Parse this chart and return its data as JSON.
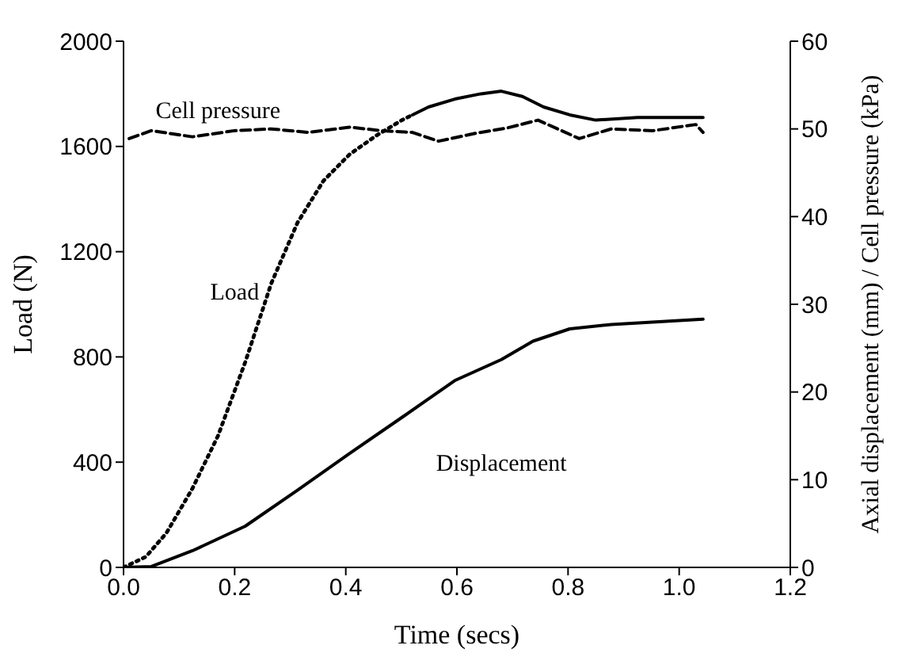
{
  "chart_data": {
    "type": "line",
    "xlabel": "Time (secs)",
    "ylabel": "Load (N)",
    "y2label": "Axial displacement (mm) / Cell pressure (kPa)",
    "xlim": [
      0,
      1.2
    ],
    "xticks": [
      {
        "value": 0,
        "label": "0.0"
      },
      0.2,
      0.4,
      0.6,
      0.8,
      {
        "value": 1,
        "label": "1.0"
      },
      1.2
    ],
    "ylim": [
      0,
      2000
    ],
    "yticks": [
      0,
      400,
      800,
      1200,
      1600,
      2000
    ],
    "y2lim": [
      0,
      60
    ],
    "y2ticks": [
      0,
      10,
      20,
      30,
      40,
      50,
      60
    ],
    "marker": "none",
    "series": [
      {
        "color": "#000000",
        "line_style": "dotted",
        "x": [
          0,
          0.04,
          0.077,
          0.124,
          0.17,
          0.219,
          0.266,
          0.313,
          0.36,
          0.407,
          0.454,
          0.501,
          0.52
        ],
        "values": [
          0,
          40,
          130,
          300,
          500,
          780,
          1080,
          1310,
          1470,
          1570,
          1640,
          1700,
          1720
        ]
      },
      {
        "color": "#000000",
        "line_style": "solid",
        "x": [
          0.52,
          0.549,
          0.596,
          0.643,
          0.68,
          0.718,
          0.756,
          0.803,
          0.85,
          0.925,
          1.043
        ],
        "values": [
          1720,
          1750,
          1780,
          1800,
          1810,
          1790,
          1750,
          1720,
          1700,
          1710,
          1710
        ]
      },
      {
        "color": "#000000",
        "line_style": "solid",
        "axis": "y2",
        "x": [
          0,
          0.05,
          0.124,
          0.219,
          0.313,
          0.407,
          0.501,
          0.596,
          0.68,
          0.737,
          0.803,
          0.878,
          1.043
        ],
        "values": [
          0,
          0.1,
          1.9,
          4.7,
          8.8,
          13.0,
          17.1,
          21.3,
          23.7,
          25.8,
          27.2,
          27.7,
          28.3
        ]
      },
      {
        "color": "#000000",
        "line_style": "dashed",
        "axis": "y2",
        "x": [
          0.01,
          0.05,
          0.124,
          0.2,
          0.266,
          0.332,
          0.407,
          0.464,
          0.52,
          0.567,
          0.633,
          0.69,
          0.746,
          0.82,
          0.878,
          0.953,
          1.03,
          1.043
        ],
        "values": [
          48.9,
          49.8,
          49.1,
          49.8,
          50.0,
          49.6,
          50.2,
          49.8,
          49.6,
          48.6,
          49.5,
          50.1,
          51.0,
          48.9,
          50.0,
          49.8,
          50.5,
          49.6
        ]
      }
    ],
    "annotations": [
      "Cell pressure",
      "Load",
      "Displacement"
    ]
  }
}
